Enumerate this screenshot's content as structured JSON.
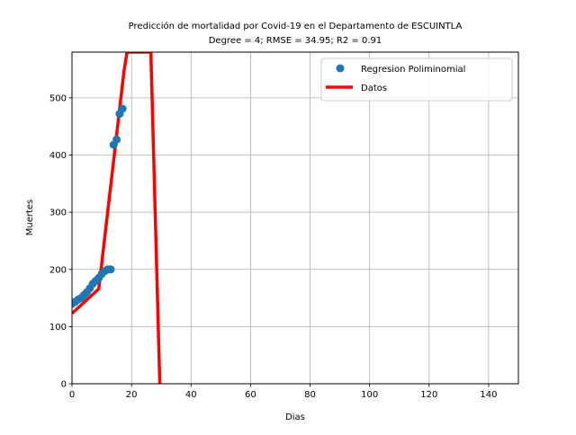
{
  "chart_data": {
    "type": "scatter",
    "title_line1": "Predicción de mortalidad por Covid-19 en el Departamento de  ESCUINTLA",
    "title_line2": "Degree = 4; RMSE = 34.95; R2 = 0.91",
    "xlabel": "Dias",
    "ylabel": "Muertes",
    "xlim": [
      0,
      150
    ],
    "ylim": [
      0,
      580
    ],
    "xticks": [
      0,
      20,
      40,
      60,
      80,
      100,
      120,
      140
    ],
    "yticks": [
      0,
      100,
      200,
      300,
      400,
      500
    ],
    "grid": true,
    "legend_position": "top-right",
    "colors": {
      "points": "#1f77b4",
      "line": "#ff0000"
    },
    "series": [
      {
        "name": "Regresion Poliminomial",
        "kind": "scatter",
        "x": [
          0,
          1,
          2,
          3,
          4,
          5,
          6,
          7,
          8,
          9,
          10,
          11,
          12,
          13,
          14,
          15,
          16,
          17
        ],
        "y": [
          140,
          143,
          147,
          150,
          155,
          160,
          167,
          175,
          180,
          185,
          192,
          197,
          200,
          200,
          418,
          427,
          472,
          481
        ]
      },
      {
        "name": "Datos",
        "kind": "line",
        "x": [
          0,
          9,
          17.5,
          18.5,
          26.5,
          29.5
        ],
        "y": [
          123,
          166,
          548,
          580,
          580,
          0
        ]
      }
    ]
  }
}
